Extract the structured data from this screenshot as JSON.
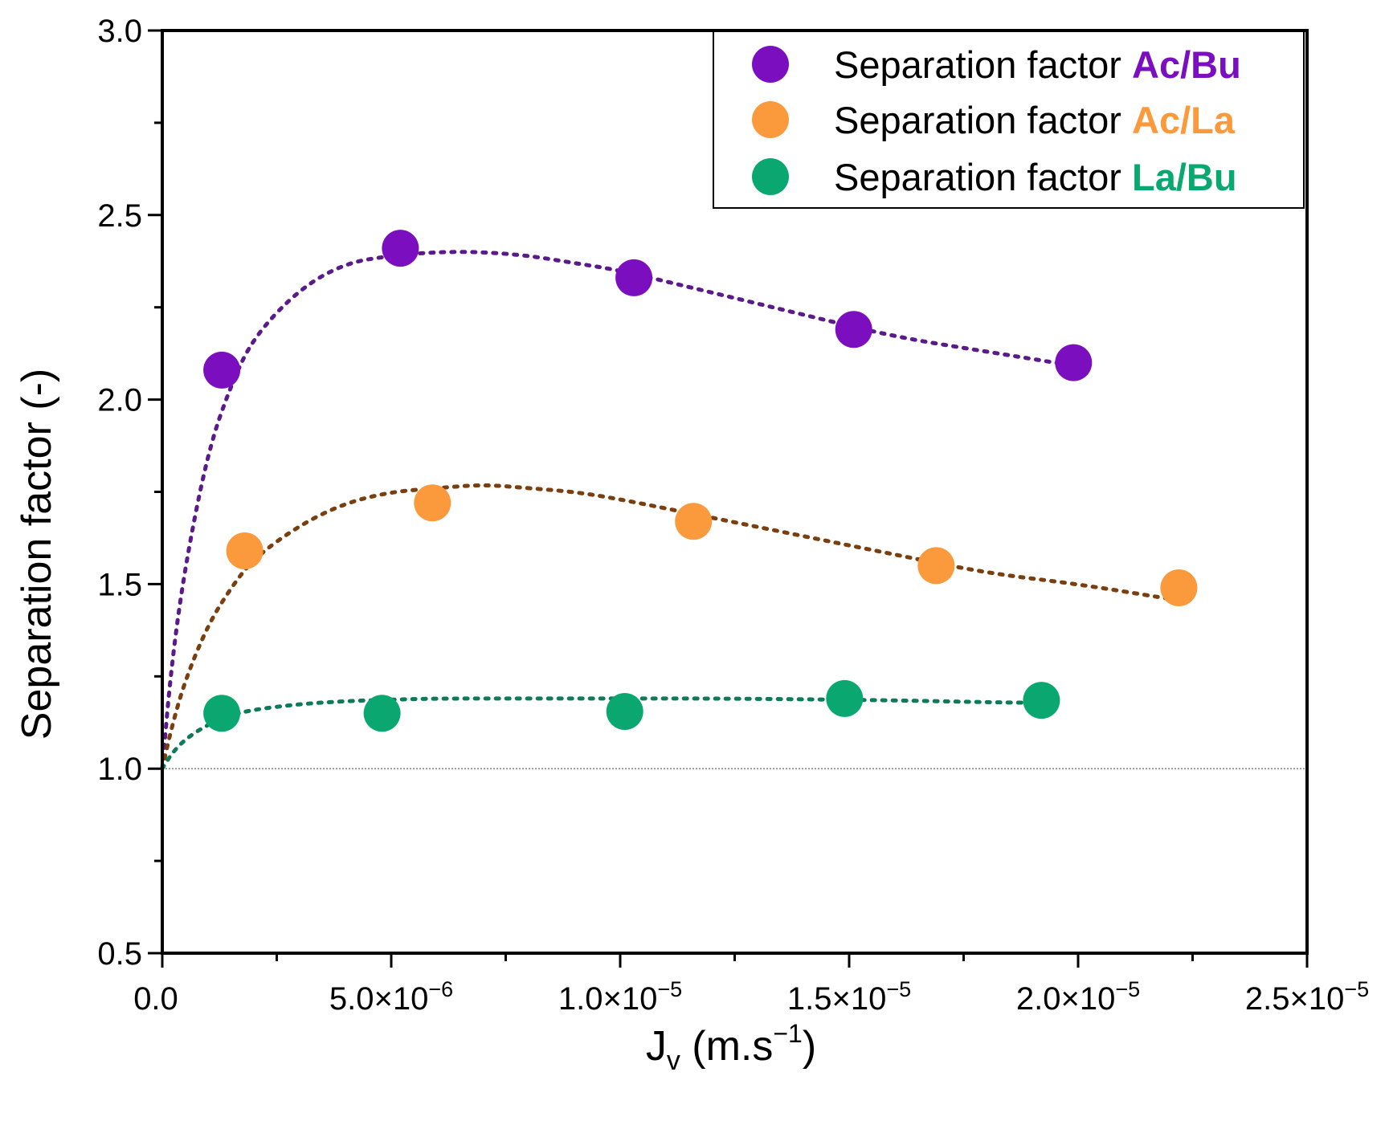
{
  "chart_data": {
    "type": "scatter",
    "title": "",
    "xlabel": {
      "main": "J",
      "sub": "v",
      "unit_open": " (m.s",
      "unit_sup": "−1",
      "unit_close": ")"
    },
    "ylabel": "Separation factor (-)",
    "xlim": [
      0,
      2.5e-05
    ],
    "ylim": [
      0.5,
      3.0
    ],
    "grid": false,
    "legend_position": "top-right",
    "reference_line": {
      "y": 1.0,
      "style": "dotted"
    },
    "x_ticks": [
      {
        "value": 0,
        "mantissa": "0.0",
        "exp": ""
      },
      {
        "value": 5e-06,
        "mantissa": "5.0×10",
        "exp": "−6"
      },
      {
        "value": 1e-05,
        "mantissa": "1.0×10",
        "exp": "−5"
      },
      {
        "value": 1.5e-05,
        "mantissa": "1.5×10",
        "exp": "−5"
      },
      {
        "value": 2e-05,
        "mantissa": "2.0×10",
        "exp": "−5"
      },
      {
        "value": 2.5e-05,
        "mantissa": "2.5×10",
        "exp": "−5"
      }
    ],
    "y_ticks": [
      {
        "value": 0.5,
        "label": "0.5"
      },
      {
        "value": 1.0,
        "label": "1.0"
      },
      {
        "value": 1.5,
        "label": "1.5"
      },
      {
        "value": 2.0,
        "label": "2.0"
      },
      {
        "value": 2.5,
        "label": "2.5"
      },
      {
        "value": 3.0,
        "label": "3.0"
      }
    ],
    "series": [
      {
        "name": "Separation factor",
        "pair": "Ac/Bu",
        "color": "#7b0fbf",
        "fit_color": "#5a1a8a",
        "x": [
          1.3e-06,
          5.2e-06,
          1.03e-05,
          1.51e-05,
          1.99e-05
        ],
        "y": [
          2.08,
          2.41,
          2.33,
          2.19,
          2.1
        ],
        "fit": {
          "x": [
            0,
            2e-07,
            5e-07,
            1e-06,
            1.5e-06,
            2e-06,
            3e-06,
            4e-06,
            5e-06,
            6e-06,
            7e-06,
            8e-06,
            9e-06,
            1e-05,
            1.2e-05,
            1.4e-05,
            1.6e-05,
            1.8e-05,
            2e-05
          ],
          "y": [
            1.0,
            1.28,
            1.55,
            1.86,
            2.04,
            2.17,
            2.3,
            2.37,
            2.39,
            2.4,
            2.4,
            2.39,
            2.37,
            2.35,
            2.29,
            2.23,
            2.17,
            2.13,
            2.09
          ]
        }
      },
      {
        "name": "Separation factor",
        "pair": "Ac/La",
        "color": "#fb9a3c",
        "fit_color": "#7a3f0e",
        "x": [
          1.8e-06,
          5.9e-06,
          1.16e-05,
          1.69e-05,
          2.22e-05
        ],
        "y": [
          1.59,
          1.72,
          1.67,
          1.55,
          1.49
        ],
        "fit": {
          "x": [
            0,
            2e-07,
            5e-07,
            1e-06,
            1.5e-06,
            2e-06,
            3e-06,
            4e-06,
            5e-06,
            6e-06,
            7e-06,
            8e-06,
            9e-06,
            1e-05,
            1.2e-05,
            1.4e-05,
            1.6e-05,
            1.8e-05,
            2e-05,
            2.2e-05
          ],
          "y": [
            1.0,
            1.11,
            1.24,
            1.39,
            1.49,
            1.57,
            1.66,
            1.72,
            1.75,
            1.76,
            1.77,
            1.76,
            1.75,
            1.73,
            1.68,
            1.63,
            1.58,
            1.53,
            1.5,
            1.46
          ]
        }
      },
      {
        "name": "Separation factor",
        "pair": "La/Bu",
        "color": "#0aa870",
        "fit_color": "#0e7a5a",
        "x": [
          1.3e-06,
          4.8e-06,
          1.01e-05,
          1.49e-05,
          1.92e-05
        ],
        "y": [
          1.15,
          1.15,
          1.155,
          1.19,
          1.185
        ],
        "fit": {
          "x": [
            0,
            2e-07,
            5e-07,
            1e-06,
            1.5e-06,
            2e-06,
            3e-06,
            4e-06,
            5e-06,
            6e-06,
            8e-06,
            1e-05,
            1.2e-05,
            1.4e-05,
            1.6e-05,
            1.8e-05,
            1.92e-05
          ],
          "y": [
            1.0,
            1.04,
            1.08,
            1.12,
            1.145,
            1.16,
            1.175,
            1.183,
            1.187,
            1.19,
            1.19,
            1.19,
            1.19,
            1.188,
            1.185,
            1.18,
            1.178
          ]
        }
      }
    ]
  }
}
